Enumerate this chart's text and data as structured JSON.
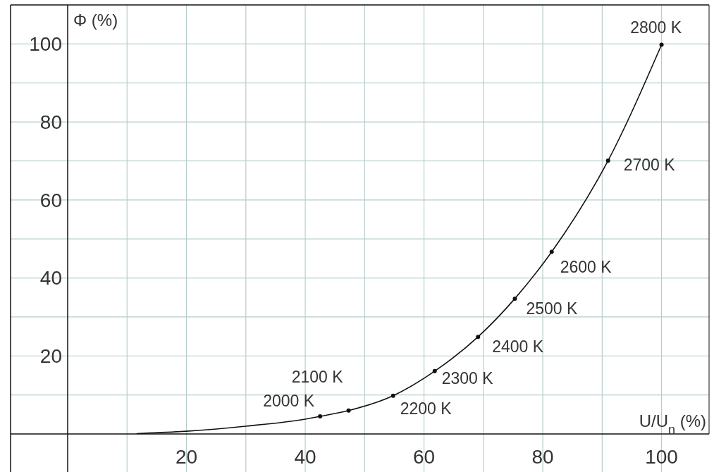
{
  "chart_data": {
    "type": "line",
    "xlabel": "U/U$_{n}$ (%)",
    "ylabel": "Φ (%)",
    "xlim": [
      0,
      108
    ],
    "ylim": [
      0,
      110
    ],
    "xticks": [
      {
        "value": 10,
        "label": null
      },
      20,
      {
        "value": 30,
        "label": null
      },
      40,
      {
        "value": 50,
        "label": null
      },
      60,
      {
        "value": 70,
        "label": null
      },
      80,
      {
        "value": 90,
        "label": null
      },
      100
    ],
    "yticks": [
      {
        "value": 10,
        "label": null
      },
      20,
      {
        "value": 30,
        "label": null
      },
      40,
      {
        "value": 50,
        "label": null
      },
      60,
      {
        "value": 70,
        "label": null
      },
      80,
      {
        "value": 90,
        "label": null
      },
      100
    ],
    "grid": true,
    "series": [
      {
        "color": "#111111",
        "marker": "none",
        "x": [
          11.6,
          20,
          30,
          40,
          42.5,
          47.3,
          54.8,
          61.8,
          69.1,
          75.3,
          81.5,
          91,
          100
        ],
        "values": [
          0.1,
          0.7,
          2,
          3.8,
          4.5,
          6,
          9.8,
          16.1,
          24.9,
          34.7,
          46.7,
          70.1,
          99.8
        ]
      },
      {
        "type": "scatter",
        "color": "#111111",
        "marker": "circle",
        "x": [
          42.5,
          47.3,
          54.8,
          61.8,
          69.1,
          75.3,
          81.5,
          91,
          100
        ],
        "values": [
          4.5,
          6,
          9.8,
          16.1,
          24.9,
          34.7,
          46.7,
          70.1,
          99.8
        ]
      }
    ],
    "annotations": [
      {
        "text": "2000 K",
        "x": 42.5,
        "y": 4.5
      },
      {
        "text": "2100 K",
        "x": 47.3,
        "y": 6
      },
      {
        "text": "2200 K",
        "x": 54.8,
        "y": 9.8
      },
      {
        "text": "2300 K",
        "x": 61.8,
        "y": 16.1
      },
      {
        "text": "2400 K",
        "x": 69.1,
        "y": 24.9
      },
      {
        "text": "2500 K",
        "x": 75.3,
        "y": 34.7
      },
      {
        "text": "2600 K",
        "x": 81.5,
        "y": 46.7
      },
      {
        "text": "2700 K",
        "x": 91,
        "y": 70.1
      },
      {
        "text": "2800 K",
        "x": 100,
        "y": 99.8
      }
    ]
  }
}
